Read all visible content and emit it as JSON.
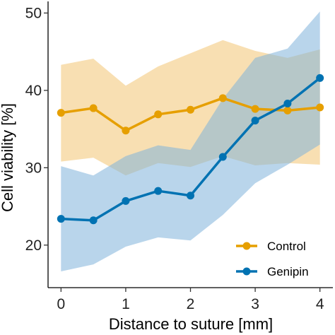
{
  "chart_data": {
    "type": "line",
    "xlabel": "Distance to suture [mm]",
    "ylabel": "Cell viability [%]",
    "xlim": [
      -0.2,
      4.2
    ],
    "ylim": [
      14.5,
      51.5
    ],
    "x_ticks": [
      0,
      1,
      2,
      3,
      4
    ],
    "y_ticks": [
      20,
      30,
      40,
      50
    ],
    "grid": false,
    "legend_position": "bottom-right",
    "x": [
      0,
      0.5,
      1,
      1.5,
      2,
      2.5,
      3,
      3.5,
      4
    ],
    "series": [
      {
        "name": "Control",
        "color": "#E69F00",
        "band_color": "#F2C572",
        "values": [
          37.1,
          37.7,
          34.8,
          36.9,
          37.5,
          39.0,
          37.6,
          37.4,
          37.8
        ],
        "band_upper": [
          43.3,
          44.1,
          40.6,
          43.1,
          44.8,
          46.5,
          45.1,
          44.2,
          45.3
        ],
        "band_lower": [
          30.8,
          31.3,
          29.0,
          30.6,
          30.1,
          31.5,
          30.3,
          30.6,
          30.4
        ]
      },
      {
        "name": "Genipin",
        "color": "#0072B2",
        "band_color": "#7FB3DB",
        "values": [
          23.4,
          23.2,
          25.7,
          27.0,
          26.4,
          31.4,
          36.1,
          38.3,
          41.6
        ],
        "band_upper": [
          30.2,
          29.0,
          31.5,
          32.9,
          32.3,
          38.9,
          44.2,
          45.4,
          50.2
        ],
        "band_lower": [
          16.6,
          17.5,
          19.8,
          21.0,
          20.6,
          23.9,
          28.0,
          30.4,
          33.0
        ]
      }
    ]
  }
}
